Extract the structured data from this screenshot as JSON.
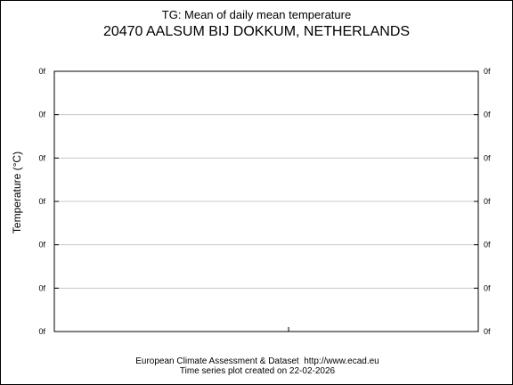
{
  "chart_data": {
    "type": "line",
    "title": "TG: Mean of daily mean temperature",
    "subtitle": "20470 AALSUM BIJ DOKKUM, NETHERLANDS",
    "ylabel": "Temperature (°C)",
    "xlabel": "",
    "yticks": [
      "0f",
      "0f",
      "0f",
      "0f",
      "0f",
      "0f",
      "0f"
    ],
    "grid": true,
    "series": [],
    "frame_color": "#000000",
    "grid_color": "#c8c8c8"
  },
  "footer": {
    "line1": "European Climate Assessment & Dataset  http://www.ecad.eu",
    "line2": "Time series plot created on 22-02-2026"
  }
}
